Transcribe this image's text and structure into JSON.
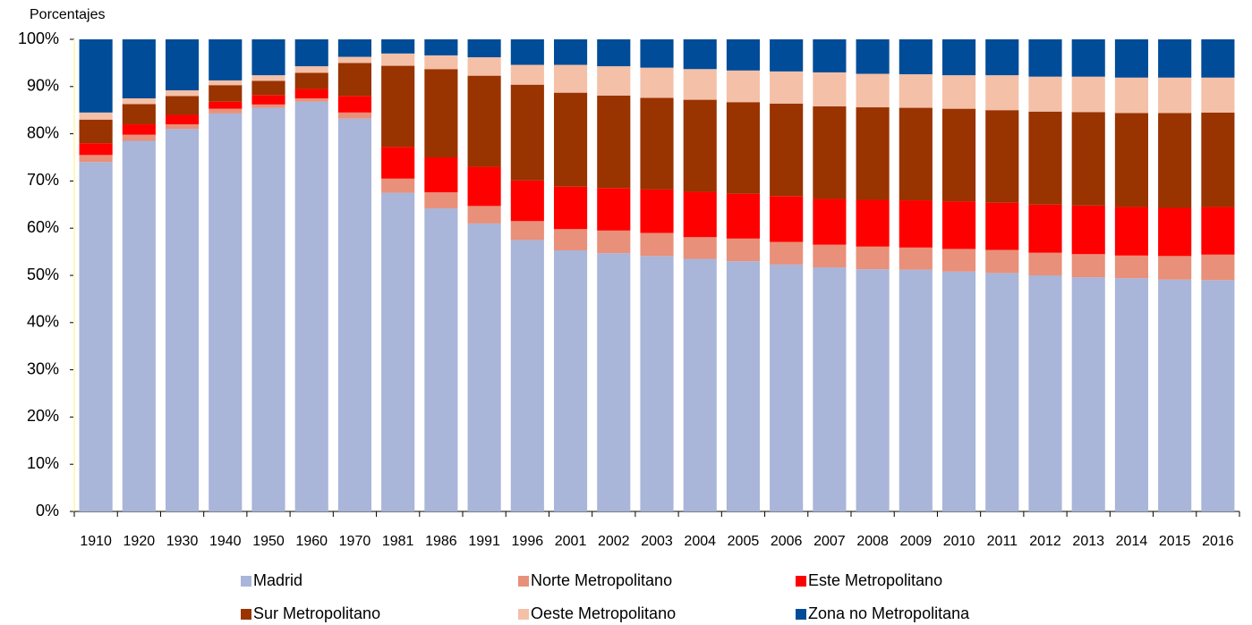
{
  "chart_data": {
    "type": "stacked_bar",
    "y_label": "Porcentajes",
    "categories": [
      "1910",
      "1920",
      "1930",
      "1940",
      "1950",
      "1960",
      "1970",
      "1981",
      "1986",
      "1991",
      "1996",
      "2001",
      "2002",
      "2003",
      "2004",
      "2005",
      "2006",
      "2007",
      "2008",
      "2009",
      "2010",
      "2011",
      "2012",
      "2013",
      "2014",
      "2015",
      "2016"
    ],
    "series": [
      {
        "name": "Madrid",
        "color": "#a9b5d9",
        "values": [
          74,
          78.5,
          81,
          84.3,
          85.5,
          86.8,
          83.2,
          67.5,
          64.2,
          61,
          57.5,
          55.3,
          54.7,
          54.1,
          53.5,
          53,
          52.3,
          51.7,
          51.3,
          51.2,
          50.8,
          50.5,
          50,
          49.6,
          49.4,
          49.1,
          49
        ]
      },
      {
        "name": "Norte Metropolitano",
        "color": "#e8907a",
        "values": [
          1.5,
          1.3,
          1,
          1,
          0.7,
          0.7,
          1.3,
          3,
          3.4,
          3.7,
          4,
          4.5,
          4.8,
          4.9,
          4.6,
          4.8,
          4.8,
          4.8,
          4.8,
          4.7,
          4.8,
          4.9,
          4.8,
          4.9,
          4.8,
          5,
          5.4
        ]
      },
      {
        "name": "Este Metropolitano",
        "color": "#ff0000",
        "values": [
          2.5,
          2.2,
          2,
          1.5,
          2,
          2,
          3.5,
          6.7,
          7.4,
          8.3,
          8.6,
          9,
          9,
          9.2,
          9.6,
          9.5,
          9.7,
          9.7,
          9.9,
          10,
          10.1,
          10,
          10.2,
          10.3,
          10.3,
          10.2,
          10.1
        ]
      },
      {
        "name": "Sur Metropolitano",
        "color": "#993300",
        "values": [
          5,
          4.3,
          4,
          3.5,
          3,
          3.4,
          7,
          17.2,
          18.7,
          19.3,
          20.3,
          19.9,
          19.6,
          19.4,
          19.5,
          19.4,
          19.6,
          19.6,
          19.6,
          19.6,
          19.6,
          19.6,
          19.7,
          19.8,
          19.9,
          20.1,
          20
        ]
      },
      {
        "name": "Oeste Metropolitano",
        "color": "#f4c0a8",
        "values": [
          1.5,
          1.2,
          1.2,
          1,
          1.2,
          1.4,
          1.3,
          2.6,
          2.9,
          3.9,
          4.2,
          5.9,
          6.2,
          6.4,
          6.5,
          6.7,
          6.8,
          7.2,
          7.1,
          7.1,
          7.1,
          7.4,
          7.4,
          7.5,
          7.5,
          7.5,
          7.4
        ]
      },
      {
        "name": "Zona no Metropolitana",
        "color": "#004c99",
        "values": [
          15.5,
          12.5,
          10.8,
          8.7,
          7.6,
          5.7,
          3.7,
          3,
          3.4,
          3.8,
          5.4,
          5.4,
          5.7,
          6,
          6.3,
          6.6,
          6.8,
          7,
          7.3,
          7.4,
          7.6,
          7.6,
          7.9,
          7.9,
          8.1,
          8.1,
          8.1
        ]
      }
    ],
    "ylim": [
      0,
      100
    ],
    "yticks": [
      {
        "value": 0,
        "label": "0%"
      },
      {
        "value": 10,
        "label": "10%"
      },
      {
        "value": 20,
        "label": "20%"
      },
      {
        "value": 30,
        "label": "30%"
      },
      {
        "value": 40,
        "label": "40%"
      },
      {
        "value": 50,
        "label": "50%"
      },
      {
        "value": 60,
        "label": "60%"
      },
      {
        "value": 70,
        "label": "70%"
      },
      {
        "value": 80,
        "label": "80%"
      },
      {
        "value": 90,
        "label": "90%"
      },
      {
        "value": 100,
        "label": "100%"
      }
    ],
    "legend": "bottom"
  }
}
